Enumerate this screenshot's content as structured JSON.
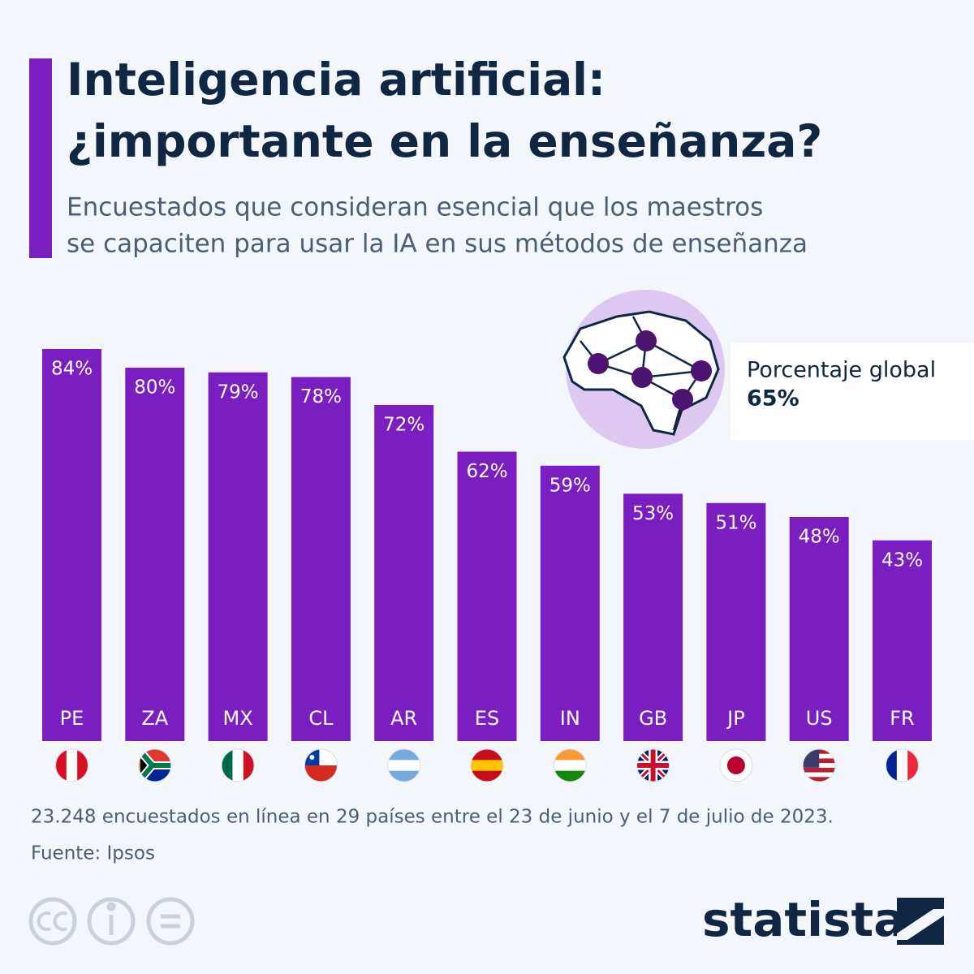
{
  "chart_data": {
    "type": "bar",
    "title": [
      "Inteligencia artificial:",
      "¿importante en la enseñanza?"
    ],
    "subtitle": [
      "Encuestados que consideran esencial que los maestros",
      "se capaciten para usar la IA en sus métodos de enseñanza"
    ],
    "categories": [
      "PE",
      "ZA",
      "MX",
      "CL",
      "AR",
      "ES",
      "IN",
      "GB",
      "JP",
      "US",
      "FR"
    ],
    "values": [
      84,
      80,
      79,
      78,
      72,
      62,
      59,
      53,
      51,
      48,
      43
    ],
    "value_labels": [
      "84%",
      "80%",
      "79%",
      "78%",
      "72%",
      "62%",
      "59%",
      "53%",
      "51%",
      "48%",
      "43%"
    ],
    "color": "#7a1dc1",
    "annotation": {
      "text": "Porcentaje global",
      "value": 65,
      "value_label": "65%"
    },
    "note": "23.248 encuestados en línea en 29 países entre el 23 de junio y el 7 de julio de 2023.",
    "source": "Fuente: Ipsos",
    "brand": "statista"
  }
}
